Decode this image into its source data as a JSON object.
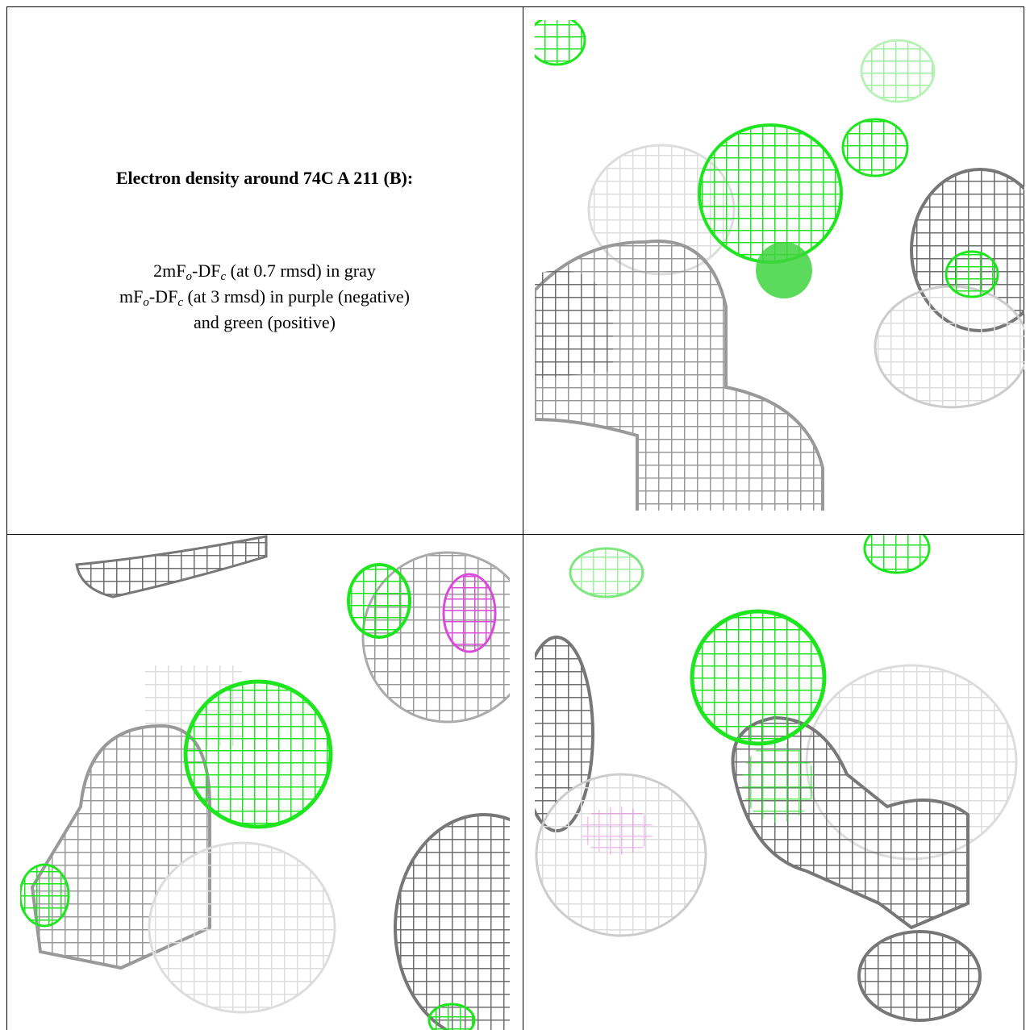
{
  "header": {
    "title": "Electron density around 74C A 211 (B):"
  },
  "legend": {
    "lines": [
      [
        "2mF",
        "o",
        "-DF",
        "c",
        " (at 0.7 rmsd) in gray"
      ],
      [
        "mF",
        "o",
        "-DF",
        "c",
        " (at 3 rmsd) in purple (negative)"
      ],
      [
        "and green (positive)"
      ]
    ]
  }
}
